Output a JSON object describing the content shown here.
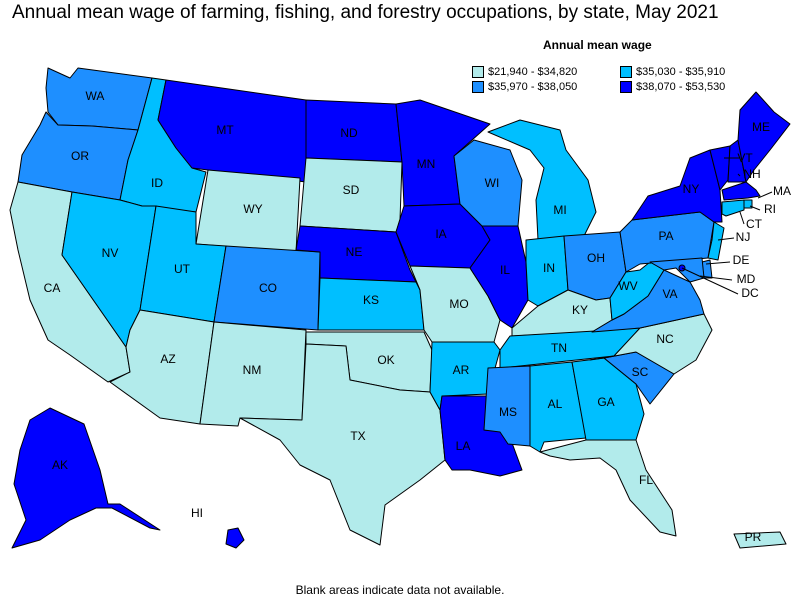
{
  "title": "Annual mean wage of farming, fishing, and forestry occupations, by state, May 2021",
  "legend": {
    "title": "Annual mean wage",
    "items": [
      {
        "label": "$21,940 - $34,820",
        "color": "#b2ebeb"
      },
      {
        "label": "$35,030 - $35,910",
        "color": "#00bfff"
      },
      {
        "label": "$35,970 - $38,050",
        "color": "#1e8fff"
      },
      {
        "label": "$38,070 - $53,530",
        "color": "#0000ff"
      }
    ]
  },
  "footnote": "Blank areas indicate data not available.",
  "states": [
    {
      "abbr": "WA",
      "bin": 2
    },
    {
      "abbr": "OR",
      "bin": 2
    },
    {
      "abbr": "CA",
      "bin": 0
    },
    {
      "abbr": "ID",
      "bin": 1
    },
    {
      "abbr": "NV",
      "bin": 1
    },
    {
      "abbr": "MT",
      "bin": 3
    },
    {
      "abbr": "WY",
      "bin": 0
    },
    {
      "abbr": "UT",
      "bin": 1
    },
    {
      "abbr": "AZ",
      "bin": 0
    },
    {
      "abbr": "CO",
      "bin": 2
    },
    {
      "abbr": "NM",
      "bin": 0
    },
    {
      "abbr": "ND",
      "bin": 3
    },
    {
      "abbr": "SD",
      "bin": 0
    },
    {
      "abbr": "NE",
      "bin": 3
    },
    {
      "abbr": "KS",
      "bin": 1
    },
    {
      "abbr": "OK",
      "bin": 0
    },
    {
      "abbr": "TX",
      "bin": 0
    },
    {
      "abbr": "MN",
      "bin": 3
    },
    {
      "abbr": "IA",
      "bin": 3
    },
    {
      "abbr": "MO",
      "bin": 0
    },
    {
      "abbr": "AR",
      "bin": 1
    },
    {
      "abbr": "LA",
      "bin": 3
    },
    {
      "abbr": "WI",
      "bin": 2
    },
    {
      "abbr": "IL",
      "bin": 3
    },
    {
      "abbr": "MI",
      "bin": 1
    },
    {
      "abbr": "IN",
      "bin": 1
    },
    {
      "abbr": "OH",
      "bin": 2
    },
    {
      "abbr": "KY",
      "bin": 0
    },
    {
      "abbr": "TN",
      "bin": 1
    },
    {
      "abbr": "MS",
      "bin": 2
    },
    {
      "abbr": "AL",
      "bin": 1
    },
    {
      "abbr": "GA",
      "bin": 1
    },
    {
      "abbr": "FL",
      "bin": 0
    },
    {
      "abbr": "SC",
      "bin": 2
    },
    {
      "abbr": "NC",
      "bin": 0
    },
    {
      "abbr": "VA",
      "bin": 2
    },
    {
      "abbr": "WV",
      "bin": 1
    },
    {
      "abbr": "PA",
      "bin": 2
    },
    {
      "abbr": "NY",
      "bin": 3
    },
    {
      "abbr": "VT",
      "bin": 3
    },
    {
      "abbr": "NH",
      "bin": 3
    },
    {
      "abbr": "ME",
      "bin": 3
    },
    {
      "abbr": "MA",
      "bin": 3
    },
    {
      "abbr": "RI",
      "bin": 1
    },
    {
      "abbr": "CT",
      "bin": 1
    },
    {
      "abbr": "NJ",
      "bin": 1
    },
    {
      "abbr": "DE",
      "bin": 2
    },
    {
      "abbr": "MD",
      "bin": 2
    },
    {
      "abbr": "DC",
      "bin": 3
    },
    {
      "abbr": "AK",
      "bin": 3
    },
    {
      "abbr": "HI",
      "bin": 3
    },
    {
      "abbr": "PR",
      "bin": 0
    }
  ]
}
